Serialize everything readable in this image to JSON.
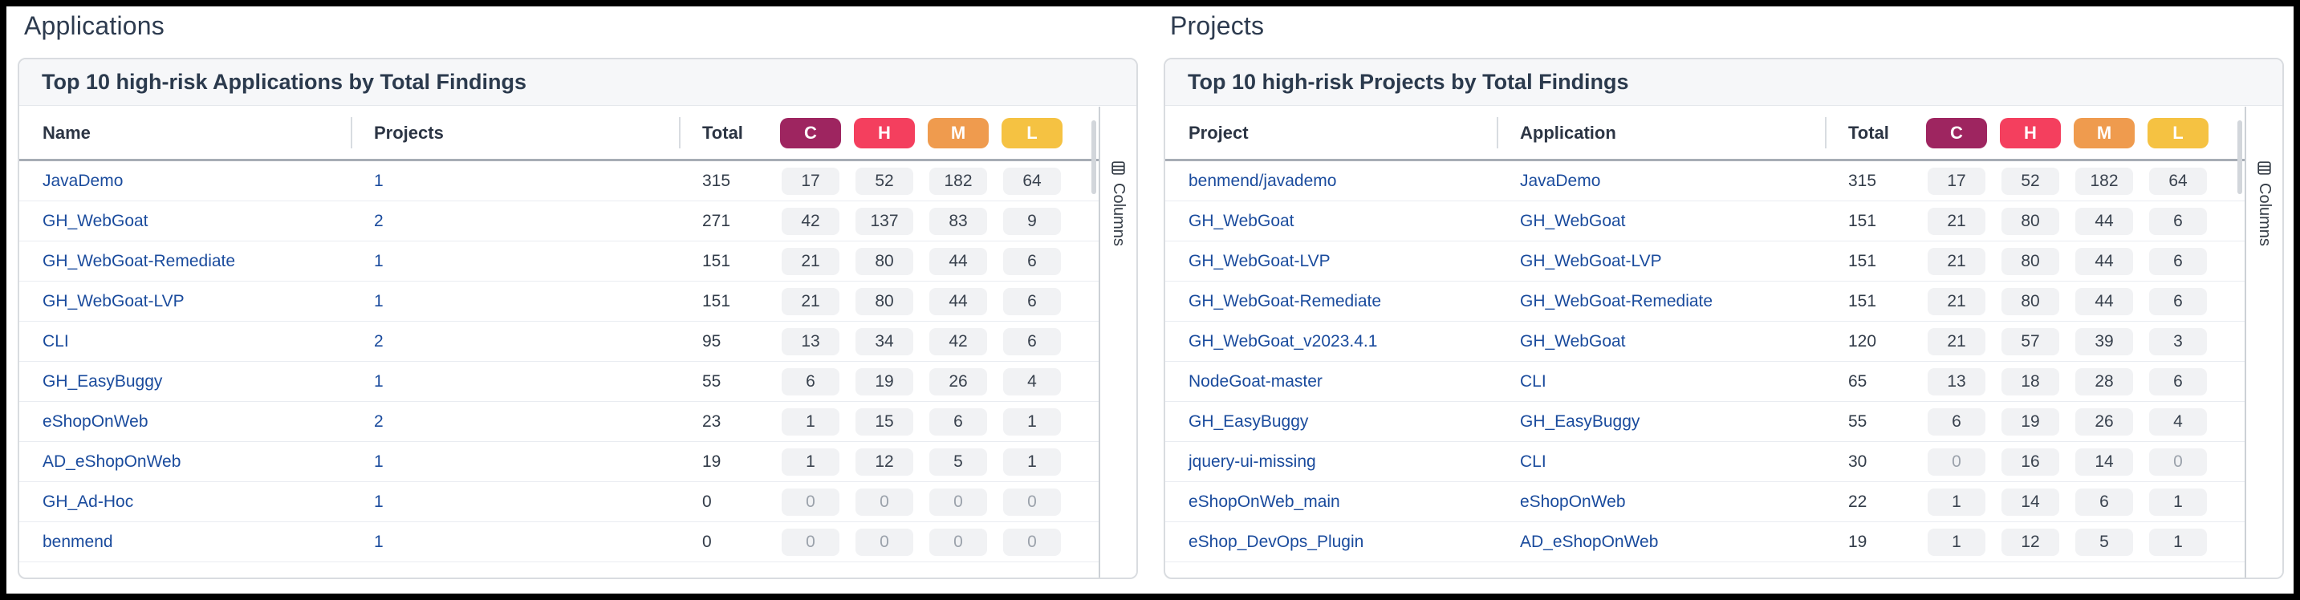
{
  "columns_button_label": "Columns",
  "severity_columns": [
    {
      "label": "C",
      "name": "critical",
      "color": "#9e2560"
    },
    {
      "label": "H",
      "name": "high",
      "color": "#f43f5e"
    },
    {
      "label": "M",
      "name": "medium",
      "color": "#ef9b4e"
    },
    {
      "label": "L",
      "name": "low",
      "color": "#f5c242"
    }
  ],
  "pill_colors": {
    "background": "#f1f2f4",
    "text": "#39424e",
    "zero_text": "#9ba2ab"
  },
  "link_color": "#1a4b9d",
  "applications": {
    "section_title": "Applications",
    "card_title": "Top 10 high-risk Applications by Total Findings",
    "columns": {
      "col1": "Name",
      "col2": "Projects",
      "col3": "Total"
    },
    "rows": [
      {
        "col1": "JavaDemo",
        "col2": "1",
        "total": "315",
        "c": "17",
        "h": "52",
        "m": "182",
        "l": "64"
      },
      {
        "col1": "GH_WebGoat",
        "col2": "2",
        "total": "271",
        "c": "42",
        "h": "137",
        "m": "83",
        "l": "9"
      },
      {
        "col1": "GH_WebGoat-Remediate",
        "col2": "1",
        "total": "151",
        "c": "21",
        "h": "80",
        "m": "44",
        "l": "6"
      },
      {
        "col1": "GH_WebGoat-LVP",
        "col2": "1",
        "total": "151",
        "c": "21",
        "h": "80",
        "m": "44",
        "l": "6"
      },
      {
        "col1": "CLI",
        "col2": "2",
        "total": "95",
        "c": "13",
        "h": "34",
        "m": "42",
        "l": "6"
      },
      {
        "col1": "GH_EasyBuggy",
        "col2": "1",
        "total": "55",
        "c": "6",
        "h": "19",
        "m": "26",
        "l": "4"
      },
      {
        "col1": "eShopOnWeb",
        "col2": "2",
        "total": "23",
        "c": "1",
        "h": "15",
        "m": "6",
        "l": "1"
      },
      {
        "col1": "AD_eShopOnWeb",
        "col2": "1",
        "total": "19",
        "c": "1",
        "h": "12",
        "m": "5",
        "l": "1"
      },
      {
        "col1": "GH_Ad-Hoc",
        "col2": "1",
        "total": "0",
        "c": "0",
        "h": "0",
        "m": "0",
        "l": "0"
      },
      {
        "col1": "benmend",
        "col2": "1",
        "total": "0",
        "c": "0",
        "h": "0",
        "m": "0",
        "l": "0"
      }
    ]
  },
  "projects": {
    "section_title": "Projects",
    "card_title": "Top 10 high-risk Projects by Total Findings",
    "columns": {
      "col1": "Project",
      "col2": "Application",
      "col3": "Total"
    },
    "rows": [
      {
        "col1": "benmend/javademo",
        "col2": "JavaDemo",
        "total": "315",
        "c": "17",
        "h": "52",
        "m": "182",
        "l": "64"
      },
      {
        "col1": "GH_WebGoat",
        "col2": "GH_WebGoat",
        "total": "151",
        "c": "21",
        "h": "80",
        "m": "44",
        "l": "6"
      },
      {
        "col1": "GH_WebGoat-LVP",
        "col2": "GH_WebGoat-LVP",
        "total": "151",
        "c": "21",
        "h": "80",
        "m": "44",
        "l": "6"
      },
      {
        "col1": "GH_WebGoat-Remediate",
        "col2": "GH_WebGoat-Remediate",
        "total": "151",
        "c": "21",
        "h": "80",
        "m": "44",
        "l": "6"
      },
      {
        "col1": "GH_WebGoat_v2023.4.1",
        "col2": "GH_WebGoat",
        "total": "120",
        "c": "21",
        "h": "57",
        "m": "39",
        "l": "3"
      },
      {
        "col1": "NodeGoat-master",
        "col2": "CLI",
        "total": "65",
        "c": "13",
        "h": "18",
        "m": "28",
        "l": "6"
      },
      {
        "col1": "GH_EasyBuggy",
        "col2": "GH_EasyBuggy",
        "total": "55",
        "c": "6",
        "h": "19",
        "m": "26",
        "l": "4"
      },
      {
        "col1": "jquery-ui-missing",
        "col2": "CLI",
        "total": "30",
        "c": "0",
        "h": "16",
        "m": "14",
        "l": "0"
      },
      {
        "col1": "eShopOnWeb_main",
        "col2": "eShopOnWeb",
        "total": "22",
        "c": "1",
        "h": "14",
        "m": "6",
        "l": "1"
      },
      {
        "col1": "eShop_DevOps_Plugin",
        "col2": "AD_eShopOnWeb",
        "total": "19",
        "c": "1",
        "h": "12",
        "m": "5",
        "l": "1"
      }
    ]
  }
}
